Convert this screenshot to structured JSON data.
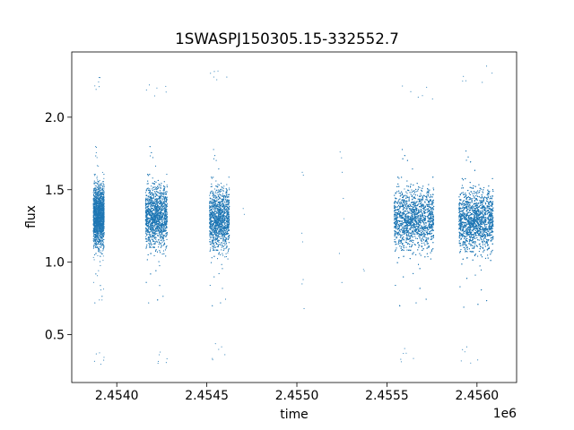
{
  "chart_data": {
    "type": "scatter",
    "title": "1SWASPJ150305.15-332552.7",
    "xlabel": "time",
    "ylabel": "flux",
    "x_offset_label": "1e6",
    "xlim": [
      2453750,
      2456220
    ],
    "ylim": [
      0.17,
      2.45
    ],
    "grid": false,
    "marker_color": "#1f77b4",
    "x_ticks": [
      {
        "value": 2454000,
        "label": "2.4540"
      },
      {
        "value": 2454500,
        "label": "2.4545"
      },
      {
        "value": 2455000,
        "label": "2.4550"
      },
      {
        "value": 2455500,
        "label": "2.4555"
      },
      {
        "value": 2456000,
        "label": "2.4560"
      }
    ],
    "y_ticks": [
      {
        "value": 0.5,
        "label": "0.5"
      },
      {
        "value": 1.0,
        "label": "1.0"
      },
      {
        "value": 1.5,
        "label": "1.5"
      },
      {
        "value": 2.0,
        "label": "2.0"
      }
    ],
    "series": [
      {
        "observing_seasons": [
          {
            "x_range": [
              2453870,
              2453930
            ],
            "median_flux": 1.32,
            "flux_range": [
              0.29,
              2.3
            ],
            "n_points": 2600
          },
          {
            "x_range": [
              2454160,
              2454280
            ],
            "median_flux": 1.32,
            "flux_range": [
              0.28,
              2.24
            ],
            "n_points": 3400
          },
          {
            "x_range": [
              2454515,
              2454625
            ],
            "median_flux": 1.3,
            "flux_range": [
              0.32,
              2.36
            ],
            "n_points": 2600
          },
          {
            "x_range": [
              2455540,
              2455760
            ],
            "median_flux": 1.3,
            "flux_range": [
              0.29,
              2.22
            ],
            "n_points": 5200
          },
          {
            "x_range": [
              2455900,
              2456090
            ],
            "median_flux": 1.29,
            "flux_range": [
              0.3,
              2.36
            ],
            "n_points": 5600
          }
        ],
        "isolated_points": [
          [
            2454702,
            1.37
          ],
          [
            2454708,
            1.33
          ],
          [
            2455030,
            1.62
          ],
          [
            2455036,
            1.6
          ],
          [
            2455028,
            1.2
          ],
          [
            2455032,
            1.14
          ],
          [
            2455035,
            0.88
          ],
          [
            2455029,
            0.85
          ],
          [
            2455040,
            0.68
          ],
          [
            2455240,
            1.76
          ],
          [
            2455248,
            1.72
          ],
          [
            2455252,
            1.62
          ],
          [
            2455258,
            1.44
          ],
          [
            2455262,
            1.3
          ],
          [
            2455236,
            1.06
          ],
          [
            2455250,
            0.86
          ],
          [
            2455370,
            0.95
          ],
          [
            2455374,
            0.94
          ]
        ]
      }
    ]
  }
}
